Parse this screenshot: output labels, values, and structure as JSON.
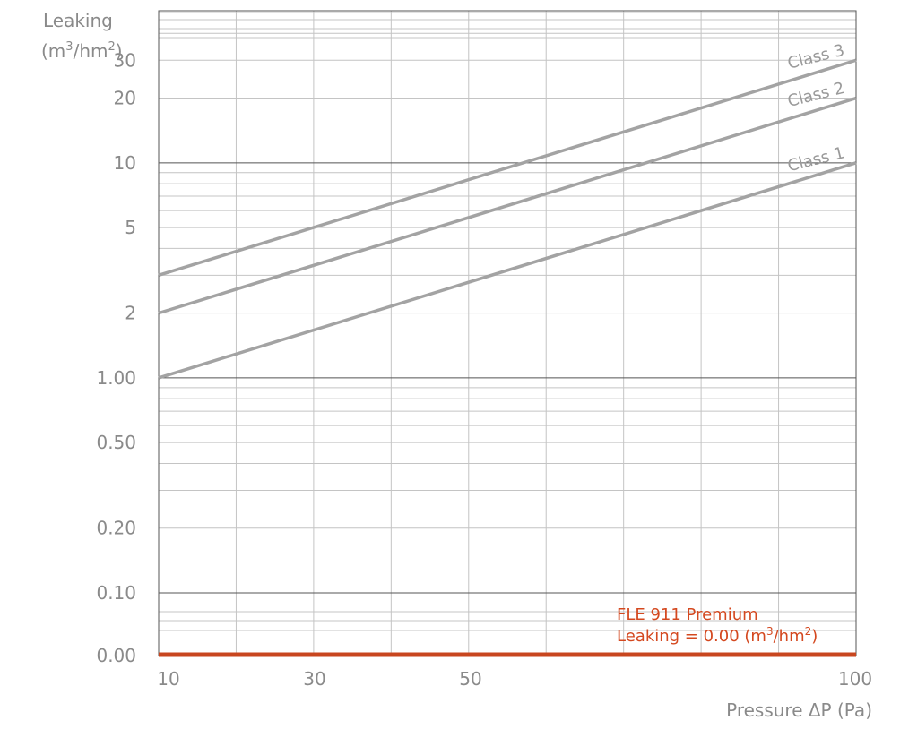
{
  "chart_data": {
    "type": "line",
    "ylabel": {
      "line1": "Leaking",
      "line2_prefix": "(m",
      "line2_sup1": "3",
      "line2_mid": "/hm",
      "line2_sup2": "2",
      "line2_suffix": ")"
    },
    "xlabel": "Pressure ΔP (Pa)",
    "x_scale": "log",
    "y_scale": "log",
    "xlim": [
      10,
      100
    ],
    "ylim": [
      0.1,
      50
    ],
    "x_ticks": [
      {
        "value": 10,
        "label": "10"
      },
      {
        "value": 30,
        "label": "30"
      },
      {
        "value": 50,
        "label": "50"
      },
      {
        "value": 100,
        "label": "100"
      }
    ],
    "y_ticks": [
      {
        "value": 0.1,
        "label": "0.10"
      },
      {
        "value": 0.2,
        "label": "0.20"
      },
      {
        "value": 0.5,
        "label": "0.50"
      },
      {
        "value": 1,
        "label": "1.00"
      },
      {
        "value": 2,
        "label": "2"
      },
      {
        "value": 5,
        "label": "5"
      },
      {
        "value": 10,
        "label": "10"
      },
      {
        "value": 20,
        "label": "20"
      },
      {
        "value": 30,
        "label": "30"
      }
    ],
    "zero_label": "0.00",
    "series": [
      {
        "name": "Class 1",
        "x": [
          10,
          100
        ],
        "y": [
          1,
          10
        ]
      },
      {
        "name": "Class 2",
        "x": [
          10,
          100
        ],
        "y": [
          2,
          20
        ]
      },
      {
        "name": "Class 3",
        "x": [
          10,
          100
        ],
        "y": [
          3,
          30
        ]
      }
    ],
    "product_line": {
      "value": 0.0,
      "label_line1": "FLE  911  Premium",
      "label_line2_prefix": "Leaking = 0.00  (m",
      "label_line2_sup1": "3",
      "label_line2_mid": "/hm",
      "label_line2_sup2": "2",
      "label_line2_suffix": ")"
    },
    "grid": true,
    "colors": {
      "series": "#a3a3a3",
      "grid_minor": "#c4c4c4",
      "grid_major": "#555555",
      "product": "#c8461f",
      "text": "#8a8a8a"
    }
  }
}
